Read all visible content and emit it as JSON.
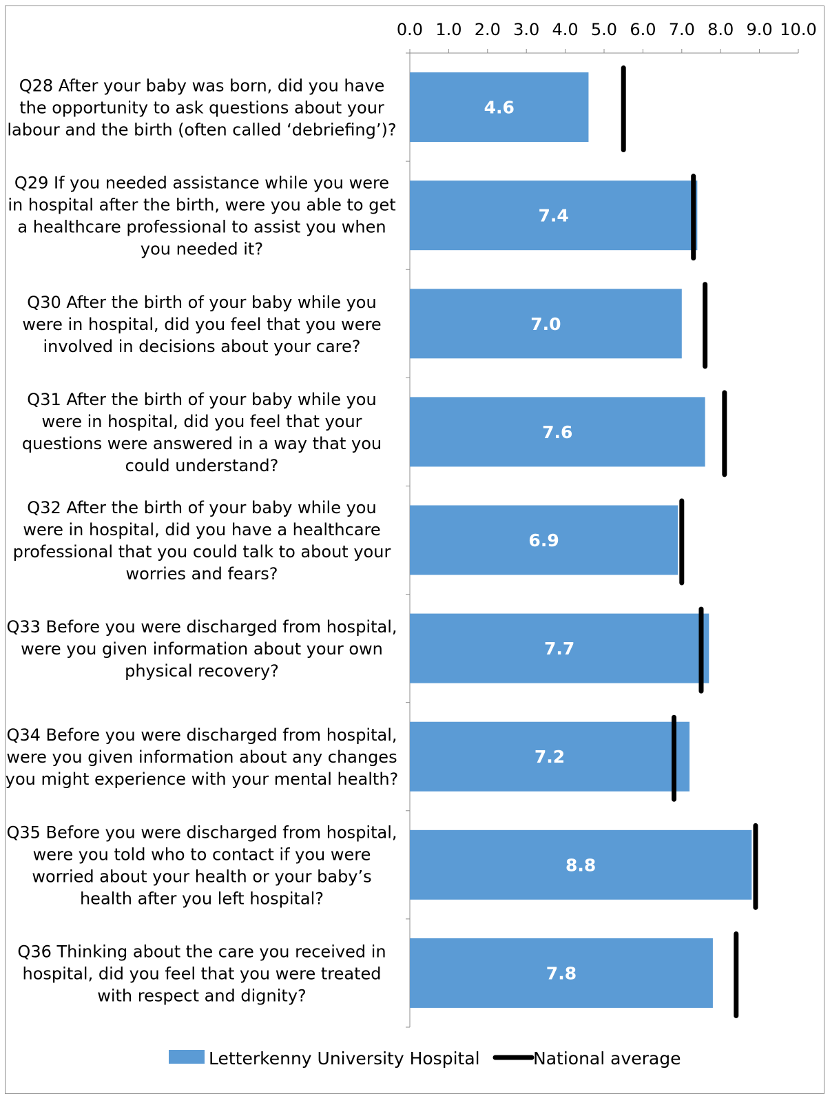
{
  "chart_data": {
    "type": "bar",
    "orientation": "horizontal",
    "title": "",
    "xlabel": "",
    "ylabel": "",
    "xlim": [
      0,
      10
    ],
    "x_ticks": [
      "0.0",
      "1.0",
      "2.0",
      "3.0",
      "4.0",
      "5.0",
      "6.0",
      "7.0",
      "8.0",
      "9.0",
      "10.0"
    ],
    "grid": false,
    "legend_position": "bottom",
    "categories": [
      [
        "Q28 After your baby was born, did you have",
        "the opportunity to ask questions about your",
        "labour and the birth (often called ‘debriefing’)?"
      ],
      [
        "Q29 If you needed assistance while you were",
        "in hospital after the birth, were you able to get",
        "a healthcare professional to assist you when",
        "you needed it?"
      ],
      [
        "Q30 After the birth of your baby while you",
        "were in hospital, did you feel that you were",
        "involved in decisions about your care?"
      ],
      [
        "Q31 After the birth of your baby while you",
        "were in hospital, did you feel that your",
        "questions were answered in a way that you",
        "could understand?"
      ],
      [
        "Q32 After the birth of your baby while you",
        "were in hospital, did you have a healthcare",
        "professional that you could talk to about your",
        "worries and fears?"
      ],
      [
        "Q33 Before you were discharged from hospital,",
        "were you given information about your own",
        "physical recovery?"
      ],
      [
        "Q34 Before you were discharged from hospital,",
        "were you given information about any changes",
        "you might experience with your mental health?"
      ],
      [
        "Q35 Before you were discharged from hospital,",
        "were you told who to contact if you were",
        "worried about your health or your baby’s",
        "health after you left hospital?"
      ],
      [
        "Q36 Thinking about the care you received in",
        "hospital, did you feel that you were treated",
        "with respect and dignity?"
      ]
    ],
    "series": [
      {
        "name": "Letterkenny University Hospital",
        "kind": "bar",
        "color": "#5b9bd5",
        "values": [
          4.6,
          7.4,
          7.0,
          7.6,
          6.9,
          7.7,
          7.2,
          8.8,
          7.8
        ],
        "labels": [
          "4.6",
          "7.4",
          "7.0",
          "7.6",
          "6.9",
          "7.7",
          "7.2",
          "8.8",
          "7.8"
        ]
      },
      {
        "name": "National average",
        "kind": "marker-line",
        "color": "#000000",
        "values": [
          5.5,
          7.3,
          7.6,
          8.1,
          7.0,
          7.5,
          6.8,
          8.9,
          8.4
        ]
      }
    ]
  }
}
